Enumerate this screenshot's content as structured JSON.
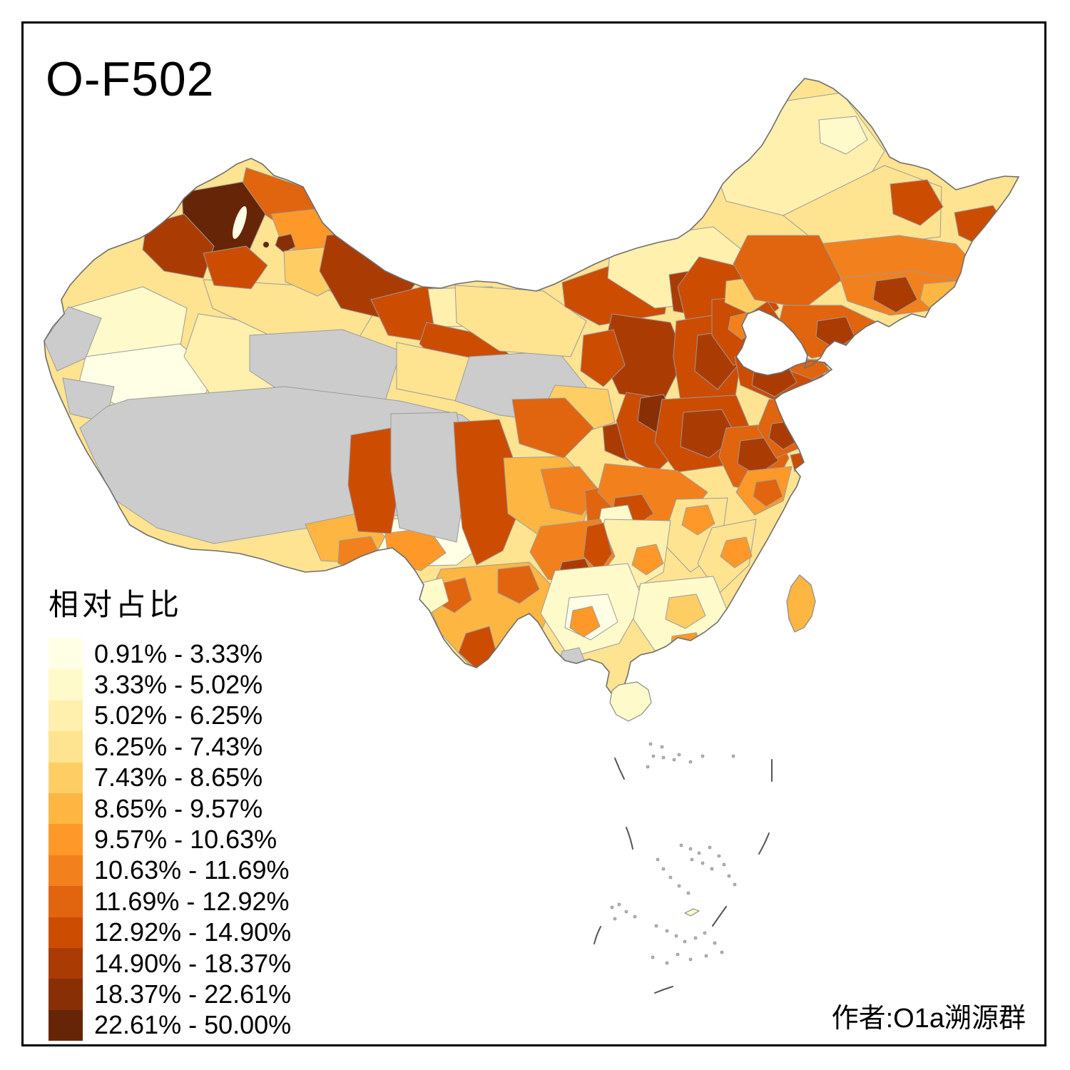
{
  "title": "O-F502",
  "legend": {
    "title": "相对占比",
    "classes": [
      {
        "label": "0.91% - 3.33%",
        "color": "#FFFFE5"
      },
      {
        "label": "3.33% - 5.02%",
        "color": "#FFFACA"
      },
      {
        "label": "5.02% - 6.25%",
        "color": "#FFF0AD"
      },
      {
        "label": "6.25% - 7.43%",
        "color": "#FEE391"
      },
      {
        "label": "7.43% - 8.65%",
        "color": "#FECE65"
      },
      {
        "label": "8.65% - 9.57%",
        "color": "#FEB642"
      },
      {
        "label": "9.57% - 10.63%",
        "color": "#FE9929"
      },
      {
        "label": "10.63% - 11.69%",
        "color": "#F2811D"
      },
      {
        "label": "11.69% - 12.92%",
        "color": "#E1640E"
      },
      {
        "label": "12.92% - 14.90%",
        "color": "#CC4C02"
      },
      {
        "label": "14.90% - 18.37%",
        "color": "#AA3C03"
      },
      {
        "label": "18.37% - 22.61%",
        "color": "#882F05"
      },
      {
        "label": "22.61% - 50.00%",
        "color": "#662506"
      }
    ]
  },
  "attribution": "作者:O1a溯源群",
  "map": {
    "region": "China prefecture-level choropleth",
    "nodata_color": "#CCCCCC",
    "boundary_color": "#6E6E6E",
    "frame_color": "#000000",
    "sea_color": "#FFFFFF"
  }
}
